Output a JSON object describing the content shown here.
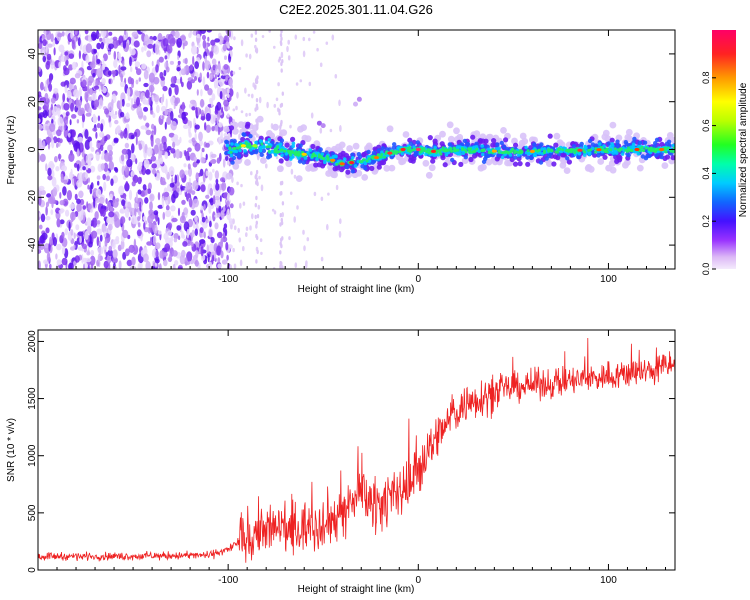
{
  "title": "C2E2.2025.301.11.04.G26",
  "chart_data": [
    {
      "type": "heatmap",
      "xlabel": "Height of straight line (km)",
      "ylabel": "Frequency (Hz)",
      "xlim": [
        -200,
        135
      ],
      "ylim": [
        -50,
        50
      ],
      "xticks": [
        -100,
        0,
        100
      ],
      "yticks": [
        -40,
        -20,
        0,
        20,
        40
      ],
      "colorbar": {
        "label": "Normalized spectral amplitude",
        "range": [
          0,
          1
        ],
        "ticks": [
          0.0,
          0.2,
          0.4,
          0.6,
          0.8
        ]
      },
      "ridge": [
        [
          -100,
          0
        ],
        [
          -90,
          2
        ],
        [
          -80,
          1
        ],
        [
          -70,
          -1
        ],
        [
          -60,
          -2
        ],
        [
          -50,
          -3
        ],
        [
          -40,
          -6
        ],
        [
          -30,
          -5
        ],
        [
          -20,
          -3
        ],
        [
          -10,
          0
        ],
        [
          0,
          0
        ],
        [
          10,
          -1
        ],
        [
          20,
          0
        ],
        [
          50,
          -1
        ],
        [
          100,
          0
        ],
        [
          135,
          0
        ]
      ],
      "noise_region": [
        -200,
        -100
      ]
    },
    {
      "type": "line",
      "xlabel": "Height of straight line (km)",
      "ylabel": "SNR (10 * v/v)",
      "xlim": [
        -200,
        135
      ],
      "ylim": [
        0,
        2100
      ],
      "xticks": [
        -100,
        0,
        100
      ],
      "yticks": [
        0,
        500,
        1000,
        1500,
        2000
      ],
      "series": [
        {
          "name": "SNR",
          "color": "#ee2222",
          "x": [
            -200,
            -150,
            -110,
            -100,
            -90,
            -80,
            -70,
            -60,
            -50,
            -40,
            -30,
            -20,
            -10,
            0,
            10,
            20,
            30,
            40,
            50,
            60,
            80,
            100,
            120,
            135
          ],
          "values": [
            120,
            120,
            130,
            180,
            300,
            350,
            350,
            380,
            420,
            500,
            650,
            600,
            650,
            900,
            1150,
            1400,
            1500,
            1550,
            1600,
            1620,
            1650,
            1700,
            1740,
            1800
          ]
        }
      ]
    }
  ]
}
